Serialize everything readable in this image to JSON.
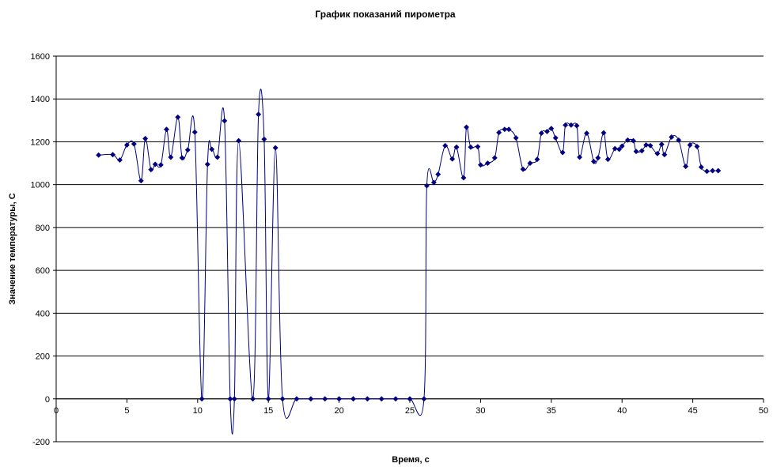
{
  "chart_data": {
    "type": "line",
    "title": "График показаний пирометра",
    "xlabel": "Время, с",
    "ylabel": "Значение температуры, С",
    "xlim": [
      0,
      50
    ],
    "ylim": [
      -200,
      1600
    ],
    "x_ticks": [
      "0",
      "5",
      "10",
      "15",
      "20",
      "25",
      "30",
      "35",
      "40",
      "45",
      "50"
    ],
    "y_ticks": [
      "-200",
      "0",
      "200",
      "400",
      "600",
      "800",
      "1000",
      "1200",
      "1400",
      "1600"
    ],
    "grid": "horizontal",
    "legend": "none",
    "series": [
      {
        "color": "#000080",
        "marker": "diamond",
        "smooth": true,
        "points": [
          [
            3.0,
            1138
          ],
          [
            4.0,
            1140
          ],
          [
            4.5,
            1115
          ],
          [
            5.0,
            1185
          ],
          [
            5.5,
            1190
          ],
          [
            6.0,
            1018
          ],
          [
            6.3,
            1215
          ],
          [
            6.7,
            1070
          ],
          [
            7.0,
            1095
          ],
          [
            7.4,
            1092
          ],
          [
            7.8,
            1258
          ],
          [
            8.1,
            1128
          ],
          [
            8.6,
            1315
          ],
          [
            8.9,
            1125
          ],
          [
            9.3,
            1162
          ],
          [
            9.8,
            1245
          ],
          [
            10.3,
            0
          ],
          [
            10.7,
            1095
          ],
          [
            11.0,
            1165
          ],
          [
            11.4,
            1128
          ],
          [
            11.9,
            1298
          ],
          [
            12.3,
            0
          ],
          [
            12.6,
            0
          ],
          [
            12.9,
            1205
          ],
          [
            13.9,
            0
          ],
          [
            14.3,
            1328
          ],
          [
            14.7,
            1212
          ],
          [
            15.0,
            0
          ],
          [
            15.5,
            1172
          ],
          [
            16.0,
            0
          ],
          [
            17.0,
            0
          ],
          [
            18.0,
            0
          ],
          [
            19.0,
            0
          ],
          [
            20.0,
            0
          ],
          [
            21.0,
            0
          ],
          [
            22.0,
            0
          ],
          [
            23.0,
            0
          ],
          [
            24.0,
            0
          ],
          [
            25.0,
            0
          ],
          [
            26.0,
            0
          ],
          [
            26.2,
            995
          ],
          [
            26.7,
            1010
          ],
          [
            27.0,
            1048
          ],
          [
            27.5,
            1182
          ],
          [
            28.0,
            1120
          ],
          [
            28.3,
            1175
          ],
          [
            28.8,
            1032
          ],
          [
            29.0,
            1268
          ],
          [
            29.3,
            1175
          ],
          [
            29.8,
            1177
          ],
          [
            30.0,
            1092
          ],
          [
            30.5,
            1100
          ],
          [
            31.0,
            1125
          ],
          [
            31.3,
            1243
          ],
          [
            31.7,
            1258
          ],
          [
            32.0,
            1258
          ],
          [
            32.5,
            1218
          ],
          [
            33.0,
            1072
          ],
          [
            33.5,
            1100
          ],
          [
            34.0,
            1118
          ],
          [
            34.3,
            1240
          ],
          [
            34.7,
            1248
          ],
          [
            35.0,
            1262
          ],
          [
            35.3,
            1218
          ],
          [
            35.8,
            1150
          ],
          [
            36.0,
            1278
          ],
          [
            36.4,
            1278
          ],
          [
            36.8,
            1275
          ],
          [
            37.0,
            1128
          ],
          [
            37.5,
            1240
          ],
          [
            38.0,
            1108
          ],
          [
            38.3,
            1125
          ],
          [
            38.7,
            1242
          ],
          [
            39.0,
            1118
          ],
          [
            39.5,
            1168
          ],
          [
            39.8,
            1165
          ],
          [
            40.0,
            1180
          ],
          [
            40.4,
            1208
          ],
          [
            40.8,
            1205
          ],
          [
            41.0,
            1155
          ],
          [
            41.4,
            1158
          ],
          [
            41.7,
            1185
          ],
          [
            42.0,
            1182
          ],
          [
            42.5,
            1145
          ],
          [
            42.8,
            1188
          ],
          [
            43.0,
            1140
          ],
          [
            43.5,
            1222
          ],
          [
            44.0,
            1208
          ],
          [
            44.5,
            1085
          ],
          [
            44.8,
            1185
          ],
          [
            45.3,
            1178
          ],
          [
            45.6,
            1082
          ],
          [
            46.0,
            1062
          ],
          [
            46.4,
            1065
          ],
          [
            46.8,
            1065
          ]
        ]
      }
    ]
  }
}
